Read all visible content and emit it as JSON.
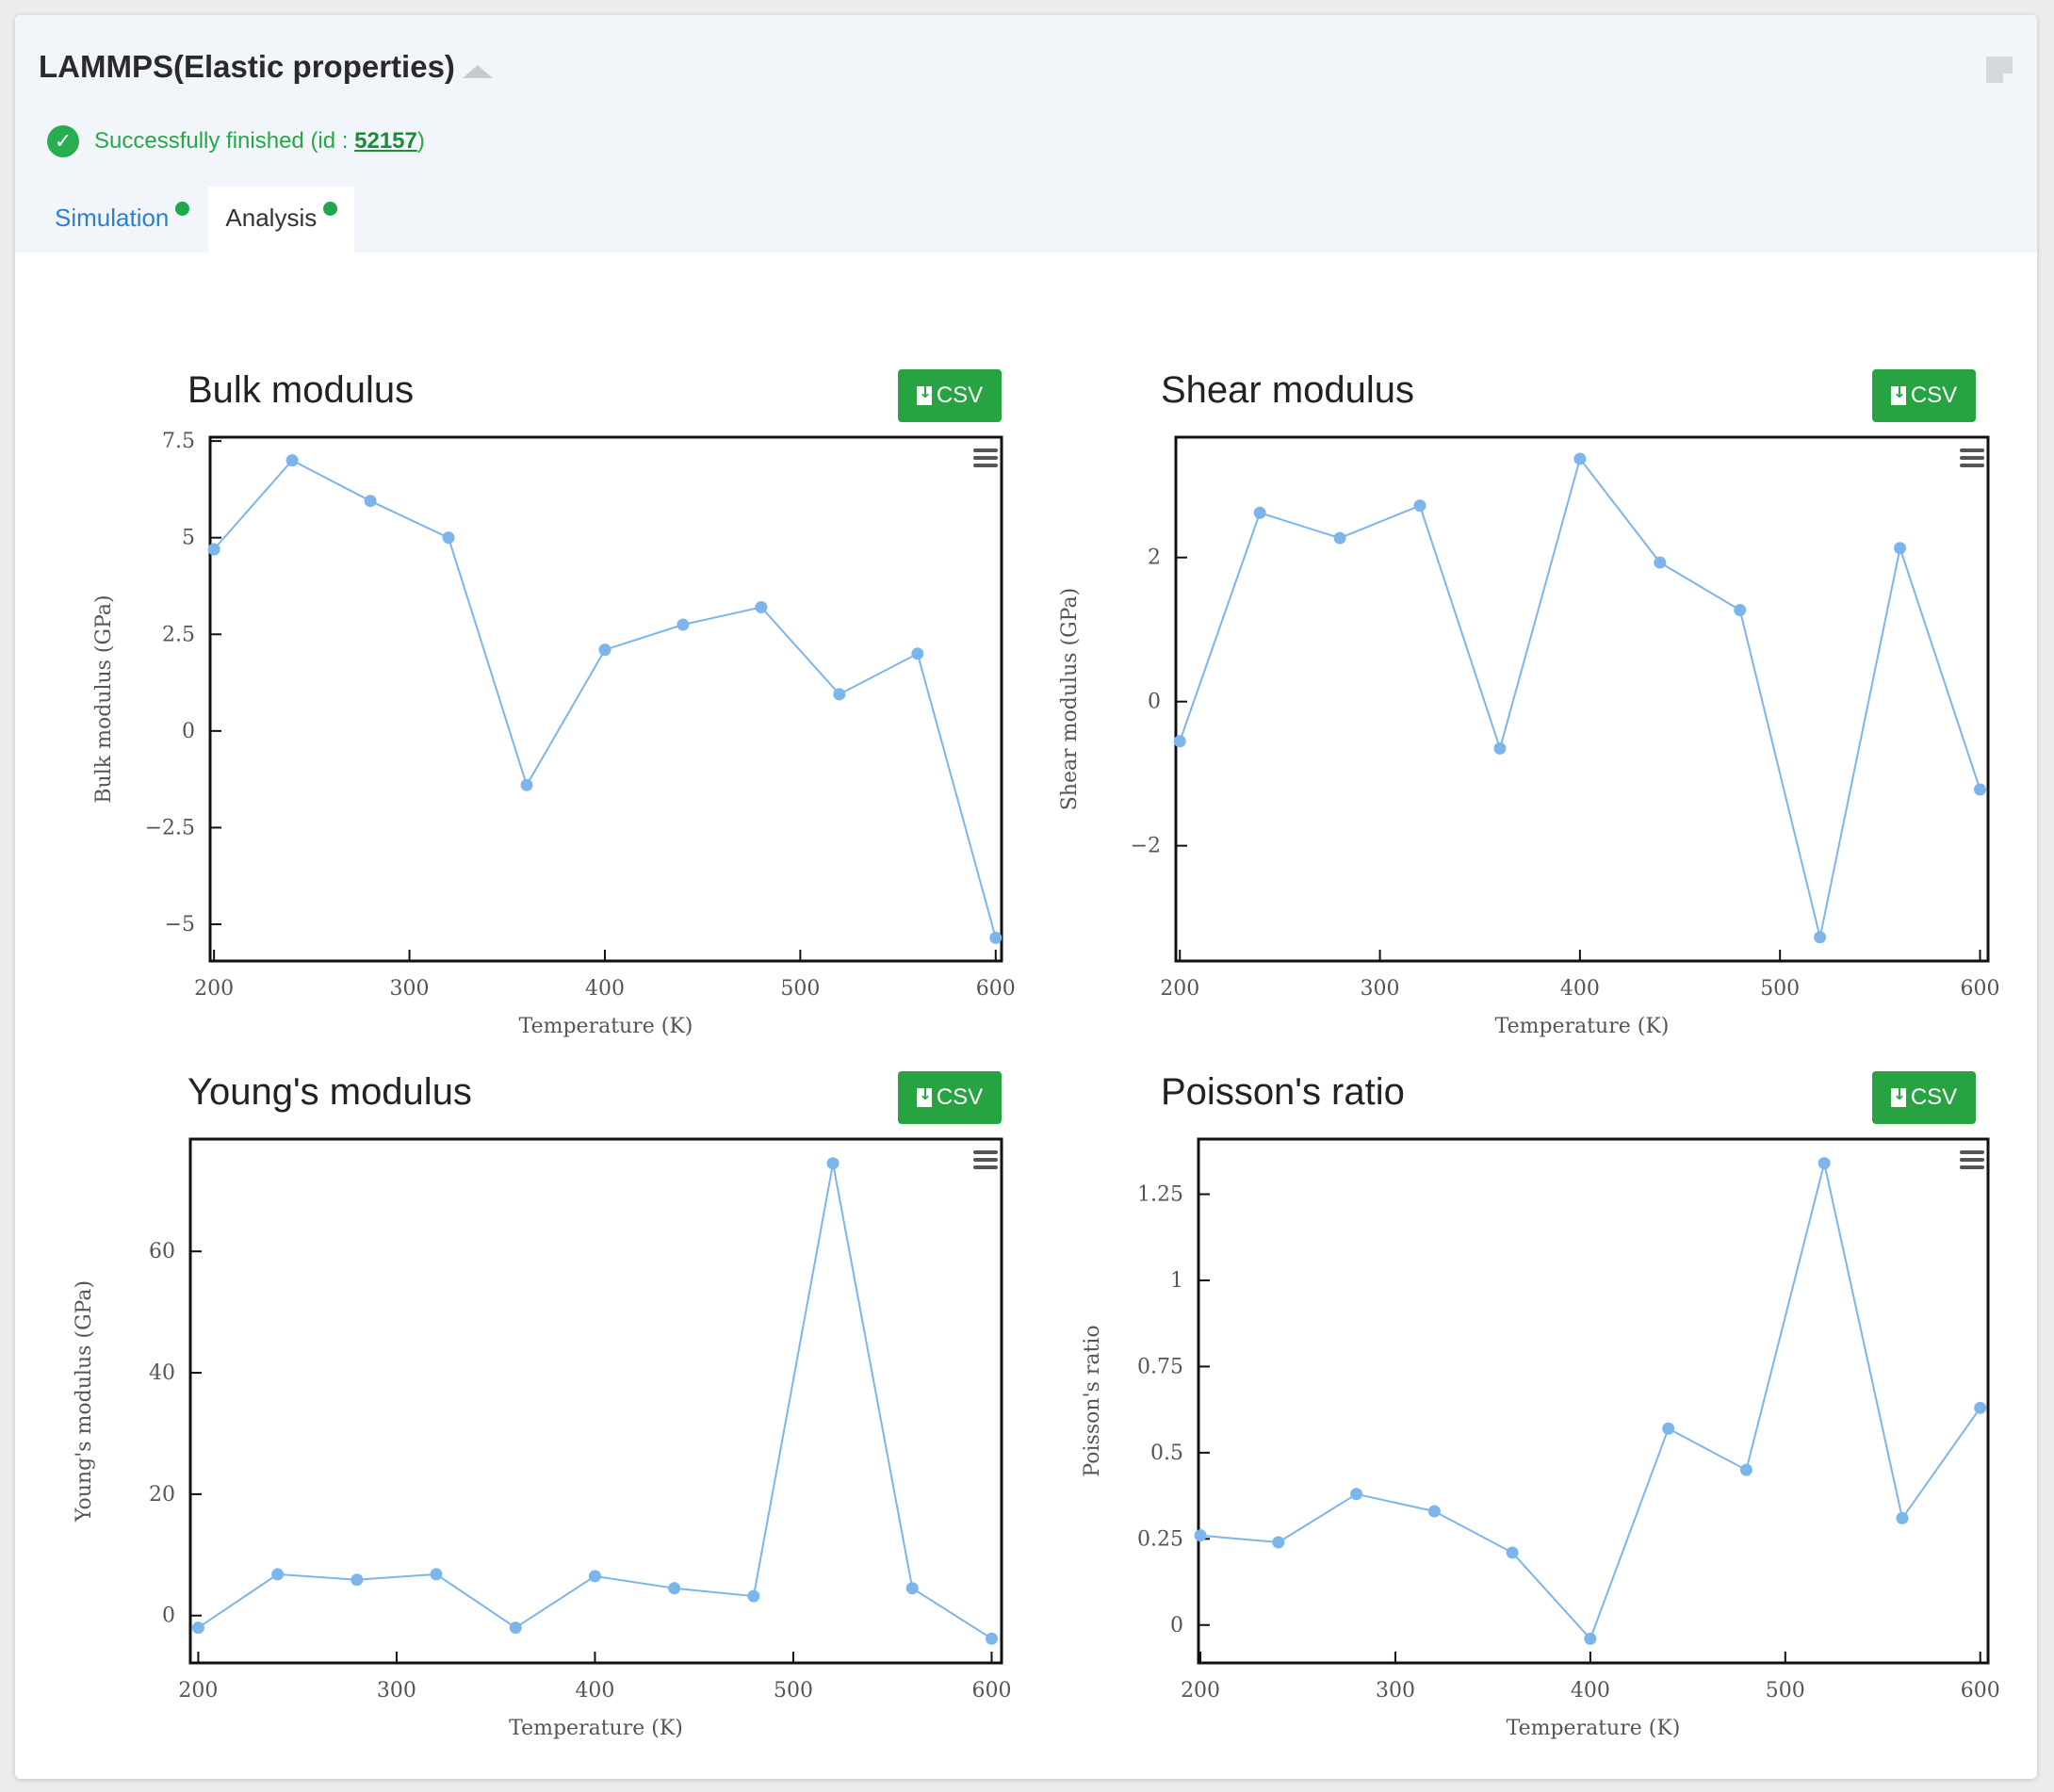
{
  "app": {
    "title": "LAMMPS(Elastic properties)",
    "status_prefix": "Successfully finished (id : ",
    "status_id": "52157",
    "status_suffix": ")",
    "status_color": "#27a745"
  },
  "tabs": [
    {
      "label": "Simulation",
      "active": false,
      "indicator": "green-dot"
    },
    {
      "label": "Analysis",
      "active": true,
      "indicator": "green-dot"
    }
  ],
  "icons": {
    "collapse": "chevron-up-icon",
    "note": "sticky-note-icon",
    "status": "check-circle-icon",
    "csv": "file-download-icon",
    "menu": "hamburger-menu-icon"
  },
  "colors": {
    "series": "#7cb5ec",
    "csv_button": "#27a341",
    "header_bg": "#f2f6fb"
  },
  "csv_label": "CSV",
  "chart_data": [
    {
      "type": "line",
      "title": "Bulk modulus",
      "xlabel": "Temperature (K)",
      "ylabel": "Bulk modulus (GPa)",
      "x": [
        200,
        240,
        280,
        320,
        360,
        400,
        440,
        480,
        520,
        560,
        600
      ],
      "series": [
        {
          "values": [
            4.7,
            7.0,
            5.95,
            5.0,
            -1.4,
            2.1,
            2.75,
            3.2,
            0.95,
            2.0,
            -5.35
          ]
        }
      ],
      "xlim": [
        198,
        603
      ],
      "ylim": [
        -5.95,
        7.6
      ],
      "xticks": [
        200,
        300,
        400,
        500,
        600
      ],
      "yticks": [
        7.5,
        5,
        2.5,
        0,
        -2.5,
        -5
      ],
      "ytick_labels": [
        "7.5",
        "5",
        "2.5",
        "0",
        "−2.5",
        "−5"
      ],
      "grid": false
    },
    {
      "type": "line",
      "title": "Shear modulus",
      "xlabel": "Temperature (K)",
      "ylabel": "Shear modulus (GPa)",
      "x": [
        200,
        240,
        280,
        320,
        360,
        400,
        440,
        480,
        520,
        560,
        600
      ],
      "series": [
        {
          "values": [
            -0.55,
            2.62,
            2.27,
            2.72,
            -0.65,
            3.37,
            1.93,
            1.27,
            -3.27,
            2.13,
            -1.22
          ]
        }
      ],
      "xlim": [
        198,
        604
      ],
      "ylim": [
        -3.6,
        3.67
      ],
      "xticks": [
        200,
        300,
        400,
        500,
        600
      ],
      "yticks": [
        2,
        0,
        -2
      ],
      "ytick_labels": [
        "2",
        "0",
        "−2"
      ],
      "grid": false
    },
    {
      "type": "line",
      "title": "Young's modulus",
      "xlabel": "Temperature (K)",
      "ylabel": "Young's modulus (GPa)",
      "x": [
        200,
        240,
        280,
        320,
        360,
        400,
        440,
        480,
        520,
        560,
        600
      ],
      "series": [
        {
          "values": [
            -2.0,
            6.8,
            5.9,
            6.8,
            -2.0,
            6.5,
            4.5,
            3.2,
            74.5,
            4.5,
            -3.8
          ]
        }
      ],
      "xlim": [
        196,
        605
      ],
      "ylim": [
        -7.8,
        78.5
      ],
      "xticks": [
        200,
        300,
        400,
        500,
        600
      ],
      "yticks": [
        60,
        40,
        20,
        0
      ],
      "ytick_labels": [
        "60",
        "40",
        "20",
        "0"
      ],
      "grid": false
    },
    {
      "type": "line",
      "title": "Poisson's ratio",
      "xlabel": "Temperature (K)",
      "ylabel": "Poisson's ratio",
      "x": [
        200,
        240,
        280,
        320,
        360,
        400,
        440,
        480,
        520,
        560,
        600
      ],
      "series": [
        {
          "values": [
            0.26,
            0.24,
            0.38,
            0.33,
            0.21,
            -0.04,
            0.57,
            0.45,
            1.34,
            0.31,
            0.63
          ]
        }
      ],
      "xlim": [
        199,
        604
      ],
      "ylim": [
        -0.11,
        1.41
      ],
      "xticks": [
        200,
        300,
        400,
        500,
        600
      ],
      "yticks": [
        1.25,
        1,
        0.75,
        0.5,
        0.25,
        0
      ],
      "ytick_labels": [
        "1.25",
        "1",
        "0.75",
        "0.5",
        "0.25",
        "0"
      ],
      "grid": false
    }
  ]
}
